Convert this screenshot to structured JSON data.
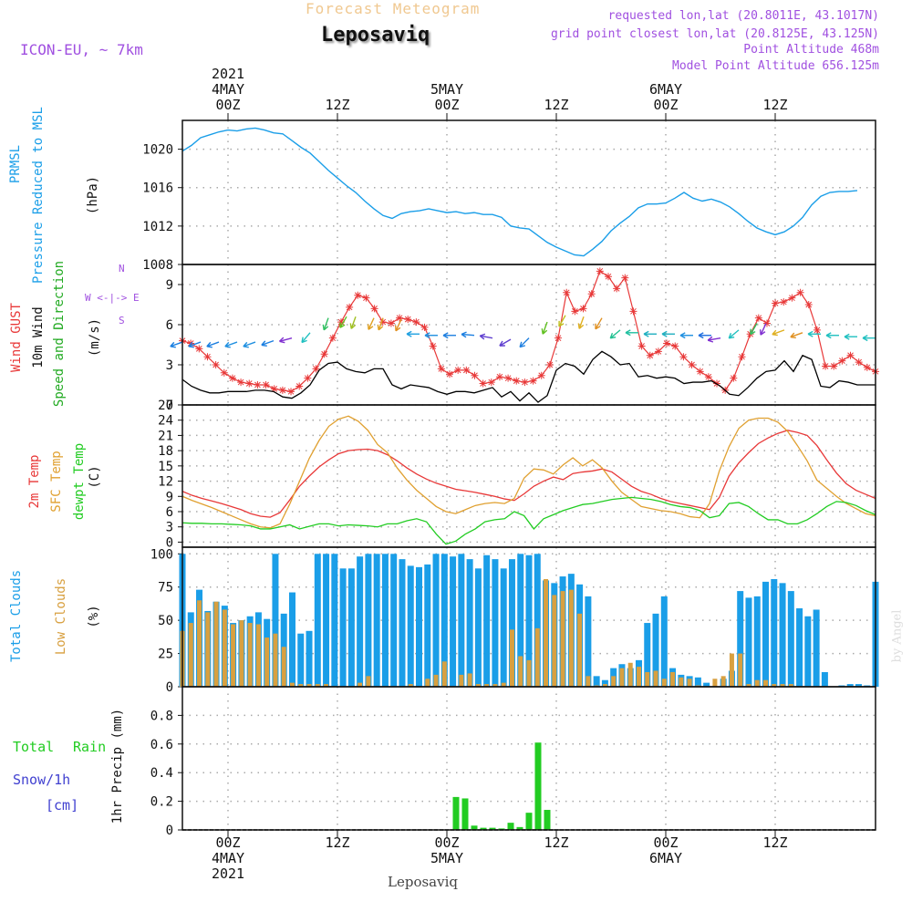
{
  "header": {
    "subtitle": "Forecast Meteogram",
    "station": "Leposaviq",
    "model": "ICON-EU, ~ 7km",
    "requested": "requested lon,lat (20.8011E, 43.1017N)",
    "gridpoint": "grid point closest lon,lat (20.8125E, 43.125N)",
    "point_alt": "Point Altitude 468m",
    "model_alt": "Model Point Altitude 656.125m"
  },
  "footer": {
    "station": "Leposaviq",
    "credit": "by Angel"
  },
  "time_axis": {
    "ticks": [
      {
        "hour": 3,
        "top": "2021|4MAY|00Z",
        "bottom": "00Z|4MAY|2021"
      },
      {
        "hour": 15,
        "top": "12Z",
        "bottom": "12Z"
      },
      {
        "hour": 27,
        "top": "5MAY|00Z",
        "bottom": "00Z|5MAY"
      },
      {
        "hour": 39,
        "top": "12Z",
        "bottom": "12Z"
      },
      {
        "hour": 51,
        "top": "6MAY|00Z",
        "bottom": "00Z|6MAY"
      },
      {
        "hour": 63,
        "top": "12Z",
        "bottom": "12Z"
      }
    ],
    "hours_range": [
      -2,
      74
    ]
  },
  "chart_data": [
    {
      "type": "line",
      "name": "pressure",
      "labels": {
        "l1": "PRMSL",
        "l2": "Pressure Reduced to MSL",
        "unit": "(hPa)"
      },
      "ylim": [
        1008,
        1023
      ],
      "yticks": [
        1008,
        1012,
        1016,
        1020
      ],
      "series": [
        {
          "name": "PRMSL",
          "color": "#1a9ee8",
          "values": [
            1019.8,
            1020.4,
            1021.2,
            1021.5,
            1021.8,
            1022.0,
            1021.9,
            1022.1,
            1022.2,
            1022.0,
            1021.7,
            1021.6,
            1020.9,
            1020.2,
            1019.6,
            1018.7,
            1017.8,
            1017.0,
            1016.2,
            1015.5,
            1014.6,
            1013.8,
            1013.1,
            1012.8,
            1013.3,
            1013.5,
            1013.6,
            1013.8,
            1013.6,
            1013.4,
            1013.5,
            1013.3,
            1013.4,
            1013.2,
            1013.2,
            1012.9,
            1012.0,
            1011.8,
            1011.7,
            1011.0,
            1010.3,
            1009.8,
            1009.4,
            1009.0,
            1008.9,
            1009.6,
            1010.4,
            1011.5,
            1012.3,
            1013.0,
            1013.9,
            1014.3,
            1014.3,
            1014.4,
            1014.9,
            1015.5,
            1014.9,
            1014.6,
            1014.8,
            1014.5,
            1014.0,
            1013.3,
            1012.5,
            1011.8,
            1011.4,
            1011.1,
            1011.4,
            1012.0,
            1012.9,
            1014.2,
            1015.1,
            1015.5,
            1015.6,
            1015.6,
            1015.7
          ]
        }
      ]
    },
    {
      "type": "line",
      "name": "wind",
      "labels": {
        "gust": "Wind GUST",
        "l2": "10m Wind",
        "l3": "Speed and Direction",
        "unit": "(m/s)",
        "compass": [
          "N",
          "W <-|-> E",
          "S"
        ]
      },
      "ylim": [
        0,
        10.5
      ],
      "yticks": [
        0,
        3,
        6,
        9
      ],
      "series": [
        {
          "name": "Wind GUST",
          "color": "#e83838",
          "values": [
            4.8,
            4.6,
            4.2,
            3.6,
            3.0,
            2.4,
            2.0,
            1.7,
            1.6,
            1.5,
            1.5,
            1.2,
            1.1,
            1.0,
            1.4,
            2.0,
            2.7,
            3.8,
            5.0,
            6.2,
            7.3,
            8.2,
            8.0,
            7.2,
            6.2,
            6.1,
            6.5,
            6.4,
            6.2,
            5.8,
            4.4,
            2.7,
            2.3,
            2.6,
            2.6,
            2.2,
            1.6,
            1.7,
            2.1,
            2.0,
            1.8,
            1.7,
            1.8,
            2.2,
            3.0,
            5.0,
            8.4,
            7.0,
            7.2,
            8.3,
            10.0,
            9.6,
            8.7,
            9.5,
            7.0,
            4.4,
            3.7,
            4.0,
            4.6,
            4.4,
            3.6,
            3.0,
            2.5,
            2.1,
            1.6,
            1.1,
            2.0,
            3.6,
            5.3,
            6.5,
            6.1,
            7.6,
            7.7,
            8.0,
            8.4,
            7.5,
            5.6,
            2.9,
            2.9,
            3.3,
            3.7,
            3.2,
            2.8,
            2.5
          ]
        },
        {
          "name": "10m Wind",
          "color": "#000000",
          "values": [
            1.9,
            1.4,
            1.1,
            0.9,
            0.9,
            1.0,
            1.0,
            1.0,
            1.1,
            1.1,
            1.0,
            0.6,
            0.5,
            0.9,
            1.5,
            2.6,
            3.1,
            3.2,
            2.7,
            2.5,
            2.4,
            2.7,
            2.7,
            1.5,
            1.2,
            1.5,
            1.4,
            1.3,
            1.0,
            0.8,
            1.0,
            1.0,
            0.9,
            1.1,
            1.3,
            0.6,
            1.0,
            0.3,
            0.9,
            0.2,
            0.7,
            2.6,
            3.1,
            2.9,
            2.3,
            3.4,
            4.0,
            3.6,
            3.0,
            3.1,
            2.1,
            2.2,
            2.0,
            2.1,
            2.0,
            1.6,
            1.7,
            1.7,
            1.8,
            1.4,
            0.8,
            0.7,
            1.3,
            2.0,
            2.5,
            2.6,
            3.3,
            2.5,
            3.7,
            3.4,
            1.4,
            1.3,
            1.8,
            1.7,
            1.5,
            1.5,
            1.5
          ]
        },
        {
          "name": "Speed and Direction",
          "color": "#22b022",
          "arrows": [
            [
              -2,
              4.7,
              250,
              "#1a7ee0"
            ],
            [
              0,
              4.7,
              250,
              "#1a7ee0"
            ],
            [
              2,
              4.7,
              250,
              "#1a7ee0"
            ],
            [
              4,
              4.7,
              250,
              "#2090e0"
            ],
            [
              6,
              4.7,
              250,
              "#2090e0"
            ],
            [
              8,
              4.8,
              250,
              "#1a7ee0"
            ],
            [
              10,
              5.0,
              255,
              "#8030d0"
            ],
            [
              12,
              5.4,
              220,
              "#20c0c0"
            ],
            [
              14,
              6.5,
              200,
              "#30c060"
            ],
            [
              16,
              6.6,
              210,
              "#60c020"
            ],
            [
              17,
              6.6,
              200,
              "#a0c020"
            ],
            [
              19,
              6.5,
              205,
              "#e0a020"
            ],
            [
              20,
              6.5,
              200,
              "#e0a020"
            ],
            [
              22,
              6.4,
              205,
              "#e09020"
            ],
            [
              24,
              5.3,
              270,
              "#20a0e0"
            ],
            [
              26,
              5.2,
              270,
              "#2090e0"
            ],
            [
              28,
              5.2,
              270,
              "#2080e0"
            ],
            [
              30,
              5.2,
              275,
              "#1a7ee0"
            ],
            [
              32,
              5.0,
              280,
              "#6040d0"
            ],
            [
              34,
              4.9,
              240,
              "#6040d0"
            ],
            [
              36,
              5.0,
              225,
              "#2080e0"
            ],
            [
              38,
              6.2,
              200,
              "#60c020"
            ],
            [
              40,
              6.7,
              210,
              "#c0c020"
            ],
            [
              42,
              6.6,
              200,
              "#e0b020"
            ],
            [
              44,
              6.5,
              210,
              "#e09020"
            ],
            [
              46,
              5.6,
              230,
              "#20c090"
            ],
            [
              48,
              5.4,
              270,
              "#20c0a0"
            ],
            [
              50,
              5.3,
              270,
              "#20b0c0"
            ],
            [
              52,
              5.3,
              270,
              "#20b0c0"
            ],
            [
              54,
              5.2,
              270,
              "#2090e0"
            ],
            [
              56,
              5.2,
              270,
              "#2070e0"
            ],
            [
              57,
              5.0,
              260,
              "#8030d0"
            ],
            [
              59,
              5.6,
              230,
              "#20c0c0"
            ],
            [
              61,
              6.1,
              210,
              "#30c060"
            ],
            [
              62,
              6.1,
              205,
              "#8030d0"
            ],
            [
              64,
              5.6,
              250,
              "#e0b020"
            ],
            [
              66,
              5.4,
              250,
              "#e09020"
            ],
            [
              68,
              5.3,
              270,
              "#20c0c0"
            ],
            [
              70,
              5.2,
              270,
              "#20c0c0"
            ],
            [
              72,
              5.1,
              270,
              "#20c0c0"
            ],
            [
              74,
              5.0,
              270,
              "#20c0c0"
            ]
          ]
        }
      ]
    },
    {
      "type": "line",
      "name": "temperature",
      "labels": {
        "l1": "2m Temp",
        "l2": "SFC Temp",
        "l3": "dewpt Temp",
        "unit": "(C)"
      },
      "ylim": [
        -1,
        27
      ],
      "yticks": [
        0,
        3,
        6,
        9,
        12,
        15,
        18,
        21,
        24,
        27
      ],
      "series": [
        {
          "name": "2m Temp",
          "color": "#e83838",
          "values": [
            10.0,
            9.2,
            8.6,
            8.1,
            7.6,
            7.0,
            6.4,
            5.6,
            5.1,
            4.9,
            5.8,
            8.3,
            11.0,
            13.0,
            14.8,
            16.2,
            17.4,
            18.0,
            18.2,
            18.3,
            18.0,
            17.2,
            16.0,
            14.6,
            13.4,
            12.4,
            11.6,
            11.0,
            10.4,
            10.1,
            9.8,
            9.4,
            9.0,
            8.5,
            8.2,
            9.5,
            11.0,
            12.0,
            12.8,
            12.3,
            13.5,
            13.8,
            14.0,
            14.4,
            13.8,
            12.4,
            11.0,
            10.0,
            9.4,
            8.6,
            8.0,
            7.6,
            7.2,
            6.8,
            6.4,
            8.8,
            13.0,
            15.6,
            17.6,
            19.4,
            20.5,
            21.4,
            22.0,
            21.6,
            21.0,
            19.0,
            16.2,
            13.6,
            11.5,
            10.2,
            9.4,
            8.6
          ]
        },
        {
          "name": "SFC Temp",
          "color": "#e0a030",
          "values": [
            9.0,
            8.2,
            7.5,
            6.8,
            6.0,
            5.2,
            4.4,
            3.6,
            3.0,
            2.8,
            3.6,
            7.5,
            12.0,
            16.5,
            20.0,
            22.8,
            24.2,
            24.8,
            23.8,
            22.0,
            19.2,
            17.6,
            14.6,
            12.2,
            10.2,
            8.6,
            7.0,
            6.0,
            5.6,
            6.4,
            7.2,
            7.6,
            7.8,
            7.6,
            8.6,
            12.6,
            14.4,
            14.2,
            13.4,
            15.2,
            16.6,
            15.0,
            16.2,
            14.6,
            12.0,
            9.8,
            8.4,
            7.0,
            6.6,
            6.2,
            6.0,
            5.6,
            5.0,
            4.8,
            7.6,
            14.0,
            18.8,
            22.4,
            24.0,
            24.4,
            24.4,
            23.6,
            21.8,
            19.0,
            16.0,
            12.2,
            10.6,
            9.0,
            7.6,
            6.6,
            5.6,
            5.2
          ]
        },
        {
          "name": "dewpt Temp",
          "color": "#22cc22",
          "values": [
            3.8,
            3.7,
            3.7,
            3.6,
            3.6,
            3.5,
            3.4,
            3.2,
            2.6,
            2.6,
            3.0,
            3.4,
            2.6,
            3.1,
            3.6,
            3.6,
            3.2,
            3.4,
            3.3,
            3.2,
            3.0,
            3.6,
            3.6,
            4.2,
            4.6,
            4.0,
            1.6,
            -0.4,
            0.2,
            1.6,
            2.6,
            4.0,
            4.4,
            4.6,
            6.0,
            5.2,
            2.6,
            4.6,
            5.4,
            6.2,
            6.8,
            7.4,
            7.6,
            8.0,
            8.4,
            8.6,
            8.8,
            8.6,
            8.4,
            8.0,
            7.4,
            7.0,
            6.8,
            6.2,
            4.8,
            5.2,
            7.6,
            7.8,
            7.0,
            5.6,
            4.4,
            4.4,
            3.6,
            3.6,
            4.4,
            5.6,
            7.0,
            8.0,
            7.8,
            7.2,
            6.2,
            5.4
          ]
        }
      ]
    },
    {
      "type": "bar",
      "name": "clouds",
      "labels": {
        "l1": "Total Clouds",
        "l2": "Low Clouds",
        "unit": "(%)"
      },
      "ylim": [
        0,
        105
      ],
      "yticks": [
        0,
        25,
        50,
        75,
        100
      ],
      "series": [
        {
          "name": "Total Clouds",
          "color": "#1a9ee8",
          "values": [
            100,
            56,
            73,
            57,
            64,
            61,
            48,
            50,
            53,
            56,
            51,
            100,
            55,
            71,
            40,
            42,
            100,
            100,
            100,
            89,
            89,
            98,
            100,
            100,
            100,
            100,
            96,
            91,
            90,
            92,
            100,
            100,
            98,
            100,
            96,
            89,
            99,
            96,
            89,
            96,
            100,
            99,
            100,
            80,
            78,
            83,
            85,
            77,
            68,
            8,
            5,
            14,
            17,
            14,
            20,
            48,
            55,
            68,
            14,
            9,
            8,
            7,
            3,
            0,
            6,
            12,
            72,
            67,
            68,
            79,
            81,
            78,
            72,
            59,
            53,
            58,
            11,
            0,
            1,
            2,
            2,
            1,
            79
          ]
        },
        {
          "name": "Low Clouds",
          "color": "#d8a040",
          "values": [
            42,
            48,
            65,
            56,
            64,
            58,
            47,
            50,
            48,
            47,
            37,
            40,
            30,
            3,
            2,
            2,
            2,
            2,
            0,
            0,
            0,
            3,
            8,
            0,
            0,
            0,
            0,
            2,
            0,
            6,
            9,
            19,
            0,
            9,
            10,
            2,
            2,
            2,
            3,
            43,
            23,
            20,
            44,
            81,
            69,
            72,
            73,
            55,
            8,
            1,
            2,
            8,
            14,
            18,
            15,
            11,
            12,
            6,
            11,
            7,
            6,
            1,
            0,
            6,
            8,
            25,
            25,
            2,
            5,
            5,
            2,
            2,
            2,
            0,
            0,
            0,
            0,
            0,
            0,
            0,
            0
          ]
        }
      ]
    },
    {
      "type": "bar",
      "name": "precip",
      "labels": {
        "l1": "Total",
        "l1b": "Rain",
        "l2": "Snow/1h",
        "l3": "[cm]",
        "unit": "1hr Precip (mm)"
      },
      "ylim": [
        0,
        1.0
      ],
      "yticks": [
        0,
        0.2,
        0.4,
        0.6,
        0.8
      ],
      "series": [
        {
          "name": "1hr Precip",
          "color": "#22cc22",
          "values": [
            [
              28,
              0.23
            ],
            [
              29,
              0.22
            ],
            [
              30,
              0.03
            ],
            [
              31,
              0.015
            ],
            [
              32,
              0.015
            ],
            [
              33,
              0.01
            ],
            [
              34,
              0.05
            ],
            [
              35,
              0.02
            ],
            [
              36,
              0.12
            ],
            [
              37,
              0.61
            ],
            [
              38,
              0.14
            ]
          ]
        }
      ]
    }
  ]
}
